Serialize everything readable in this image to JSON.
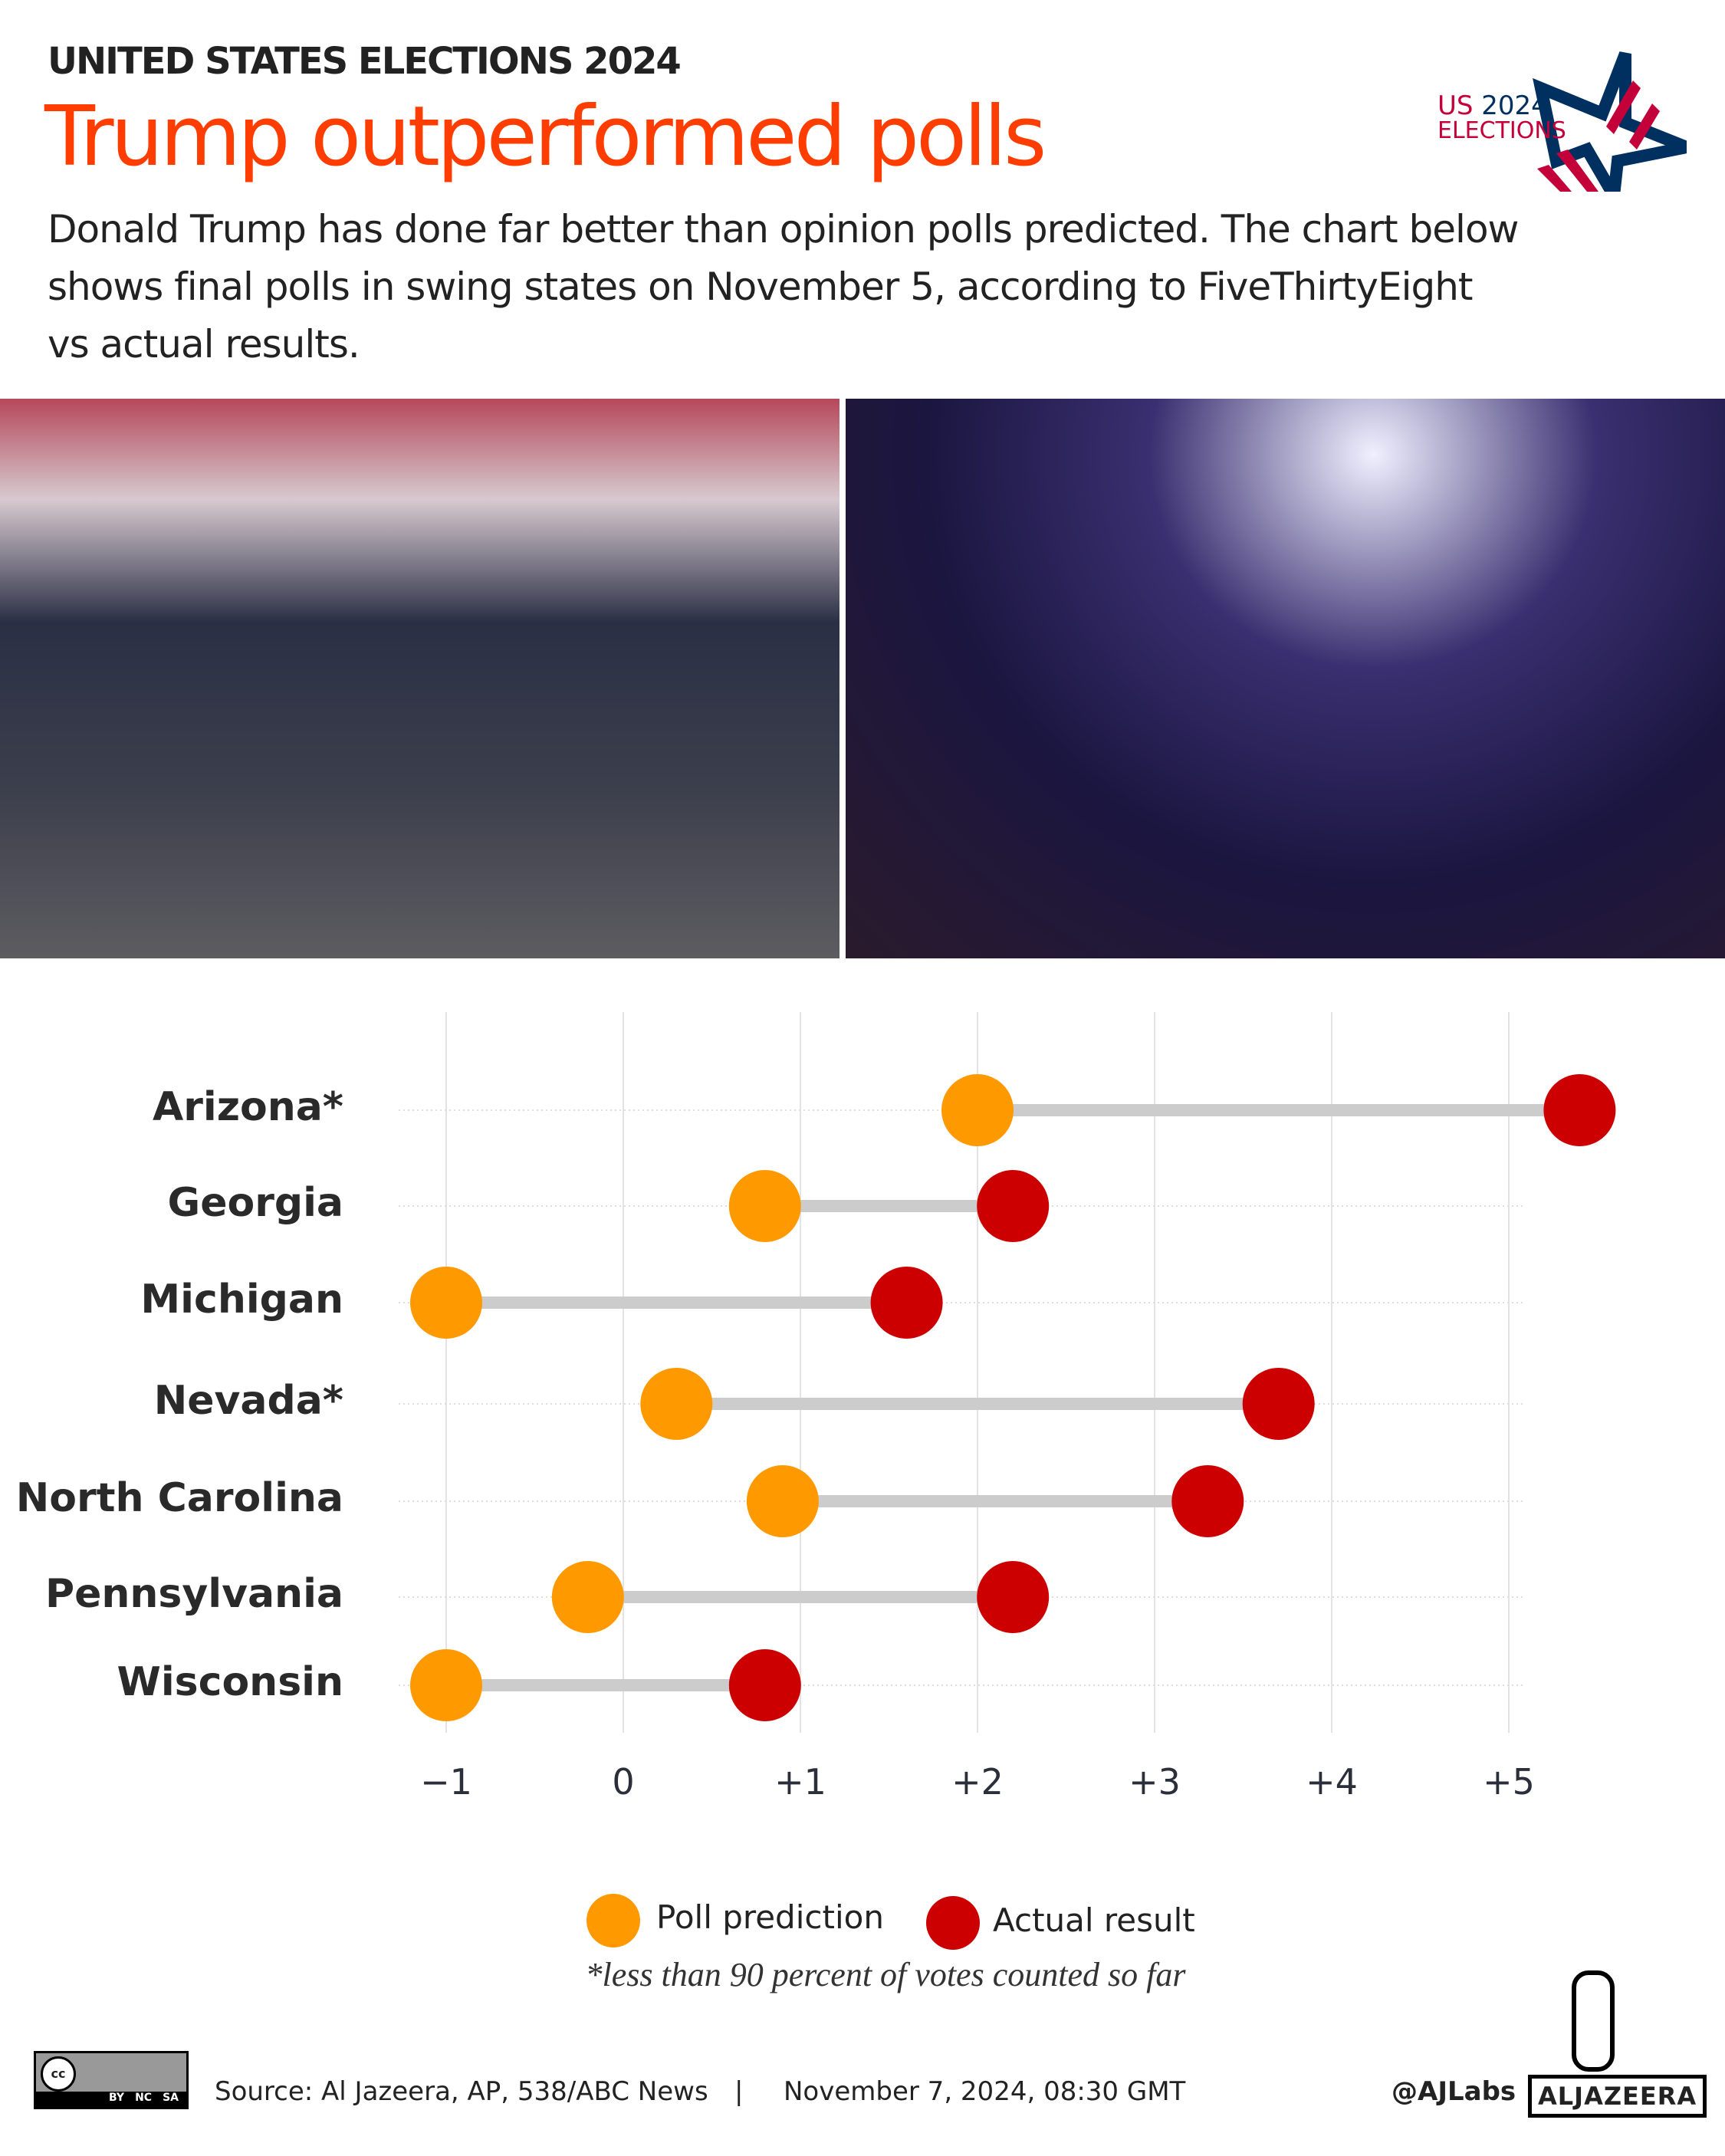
{
  "header": {
    "kicker": "UNITED STATES ELECTIONS 2024",
    "title": "Trump outperformed polls",
    "subtitle": "Donald Trump has done far better than opinion polls predicted. The chart below shows final polls in swing states on November 5, according to FiveThirtyEight vs actual results.",
    "logo": {
      "line1a": "US",
      "line1b": "2024",
      "line2": "ELECTIONS"
    }
  },
  "colors": {
    "title": "#ff3d00",
    "poll": "#ff9900",
    "actual": "#cc0000",
    "connector": "#cccccc"
  },
  "chart_data": {
    "type": "dumbbell",
    "categories": [
      "Arizona*",
      "Georgia",
      "Michigan",
      "Nevada*",
      "North Carolina",
      "Pennsylvania",
      "Wisconsin"
    ],
    "series": [
      {
        "name": "Poll prediction",
        "values": [
          2.0,
          0.8,
          -1.0,
          0.3,
          0.9,
          -0.2,
          -1.0
        ]
      },
      {
        "name": "Actual result",
        "values": [
          5.4,
          2.2,
          1.6,
          3.7,
          3.3,
          2.2,
          0.8
        ]
      }
    ],
    "xticks": [
      -1,
      0,
      1,
      2,
      3,
      4,
      5
    ],
    "xtick_labels": [
      "−1",
      "0",
      "+1",
      "+2",
      "+3",
      "+4",
      "+5"
    ],
    "xlim": [
      -1,
      5.4
    ],
    "grid": "vertical",
    "legend_position": "bottom",
    "footnote": "*less than 90 percent of votes counted so far"
  },
  "footer": {
    "source": "Source:  Al Jazeera, AP, 538/ABC News",
    "separator": "|",
    "date": "November 7, 2024, 08:30 GMT",
    "handle": "@AJLabs",
    "brand": "ALJAZEERA",
    "license": [
      "BY",
      "NC",
      "SA"
    ]
  }
}
